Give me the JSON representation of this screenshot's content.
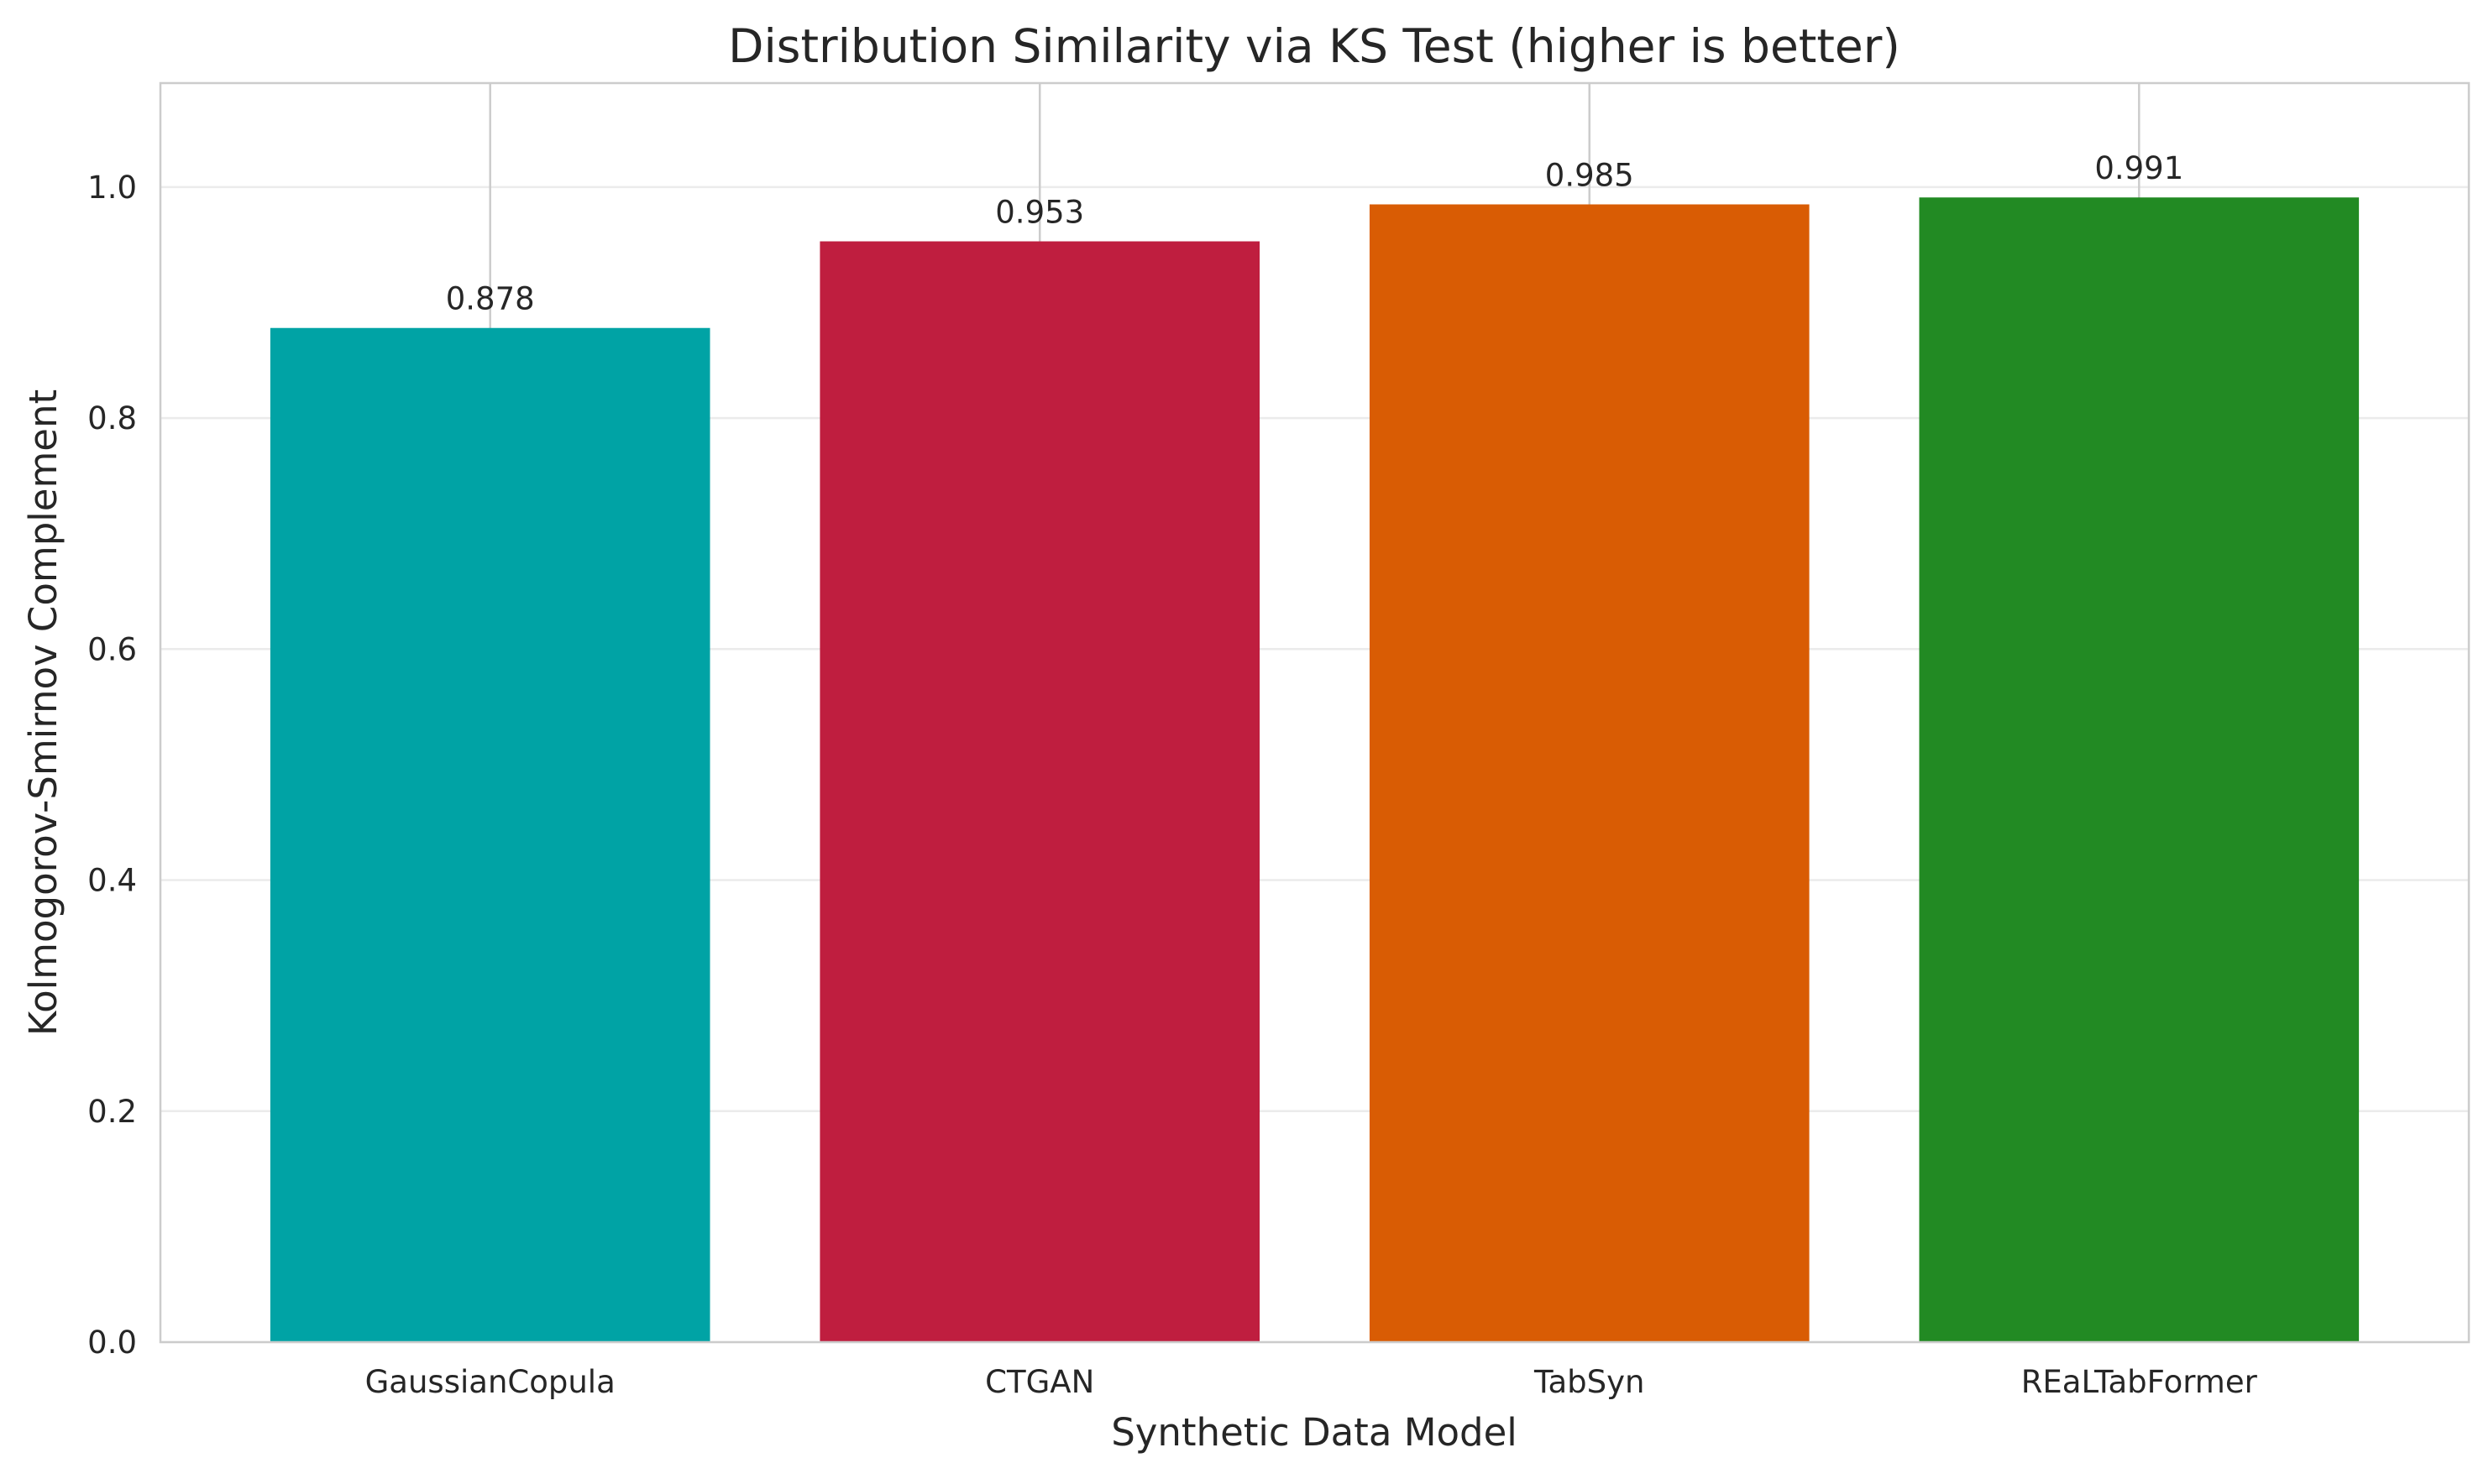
{
  "chart_data": {
    "type": "bar",
    "title": "Distribution Similarity via KS Test (higher is better)",
    "xlabel": "Synthetic Data Model",
    "ylabel": "Kolmogorov-Smirnov Complement",
    "categories": [
      "GaussianCopula",
      "CTGAN",
      "TabSyn",
      "REaLTabFormer"
    ],
    "values": [
      0.878,
      0.953,
      0.985,
      0.991
    ],
    "value_labels": [
      "0.878",
      "0.953",
      "0.985",
      "0.991"
    ],
    "colors": [
      "#00a3a5",
      "#bf1e3f",
      "#d95c04",
      "#228a23"
    ],
    "ylim": [
      0,
      1.09
    ],
    "yticks": [
      0.0,
      0.2,
      0.4,
      0.6,
      0.8,
      1.0
    ],
    "ytick_labels": [
      "0.0",
      "0.2",
      "0.4",
      "0.6",
      "0.8",
      "1.0"
    ],
    "grid": true,
    "legend": "none"
  }
}
